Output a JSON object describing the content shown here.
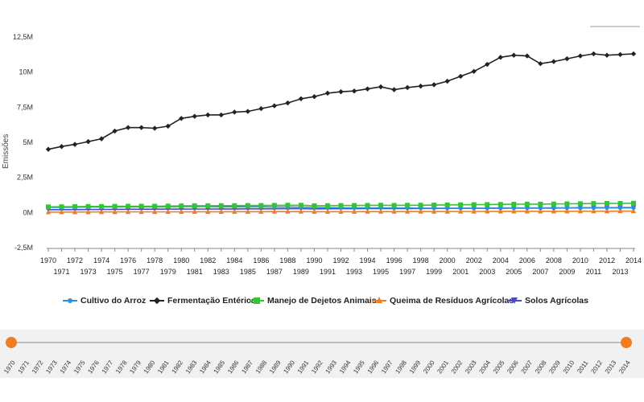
{
  "chart_data": {
    "type": "line",
    "title": "",
    "xlabel": "",
    "ylabel": "Emissões",
    "ylim": [
      -2500000,
      12500000
    ],
    "yticks": [
      {
        "value": 12500000,
        "label": "12,5M"
      },
      {
        "value": 10000000,
        "label": "10M"
      },
      {
        "value": 7500000,
        "label": "7,5M"
      },
      {
        "value": 5000000,
        "label": "5M"
      },
      {
        "value": 2500000,
        "label": "2,5M"
      },
      {
        "value": 0,
        "label": "0M"
      },
      {
        "value": -2500000,
        "label": "-2,5M"
      }
    ],
    "x": [
      1970,
      1971,
      1972,
      1973,
      1974,
      1975,
      1976,
      1977,
      1978,
      1979,
      1980,
      1981,
      1982,
      1983,
      1984,
      1985,
      1986,
      1987,
      1988,
      1989,
      1990,
      1991,
      1992,
      1993,
      1994,
      1995,
      1996,
      1997,
      1998,
      1999,
      2000,
      2001,
      2002,
      2003,
      2004,
      2005,
      2006,
      2007,
      2008,
      2009,
      2010,
      2011,
      2012,
      2013,
      2014
    ],
    "grid": false,
    "legend_position": "bottom",
    "series": [
      {
        "name": "Cultivo do Arroz",
        "color": "#2f8fdc",
        "marker": "circle",
        "values": [
          360000,
          370000,
          380000,
          390000,
          390000,
          400000,
          410000,
          410000,
          400000,
          410000,
          420000,
          420000,
          420000,
          410000,
          410000,
          400000,
          400000,
          390000,
          390000,
          380000,
          360000,
          350000,
          340000,
          330000,
          330000,
          330000,
          320000,
          320000,
          310000,
          310000,
          300000,
          300000,
          300000,
          300000,
          300000,
          310000,
          310000,
          310000,
          310000,
          320000,
          320000,
          330000,
          330000,
          330000,
          330000
        ]
      },
      {
        "name": "Fermentação Entérica",
        "color": "#222222",
        "marker": "diamond",
        "values": [
          4500000,
          4700000,
          4850000,
          5050000,
          5250000,
          5800000,
          6050000,
          6050000,
          6000000,
          6150000,
          6700000,
          6850000,
          6950000,
          6950000,
          7150000,
          7200000,
          7400000,
          7600000,
          7800000,
          8100000,
          8250000,
          8500000,
          8600000,
          8650000,
          8800000,
          8950000,
          8750000,
          8900000,
          9000000,
          9100000,
          9350000,
          9700000,
          10050000,
          10550000,
          11050000,
          11200000,
          11150000,
          10600000,
          10750000,
          10950000,
          11150000,
          11300000,
          11200000,
          11250000,
          11300000
        ]
      },
      {
        "name": "Manejo de Dejetos Animais",
        "color": "#35c435",
        "marker": "square",
        "values": [
          400000,
          410000,
          420000,
          430000,
          430000,
          440000,
          450000,
          450000,
          450000,
          460000,
          470000,
          480000,
          480000,
          490000,
          490000,
          500000,
          500000,
          510000,
          520000,
          520000,
          480000,
          490000,
          500000,
          500000,
          510000,
          520000,
          510000,
          520000,
          520000,
          530000,
          540000,
          550000,
          560000,
          570000,
          580000,
          590000,
          600000,
          600000,
          610000,
          620000,
          630000,
          640000,
          650000,
          650000,
          660000
        ]
      },
      {
        "name": "Queima de Resíduos Agrícolas",
        "color": "#f07d20",
        "marker": "triangle",
        "values": [
          30000,
          30000,
          35000,
          35000,
          40000,
          40000,
          45000,
          45000,
          45000,
          50000,
          50000,
          55000,
          55000,
          55000,
          60000,
          60000,
          60000,
          65000,
          65000,
          65000,
          60000,
          60000,
          60000,
          60000,
          65000,
          65000,
          65000,
          70000,
          70000,
          70000,
          70000,
          75000,
          75000,
          80000,
          80000,
          85000,
          85000,
          85000,
          90000,
          90000,
          95000,
          95000,
          95000,
          100000,
          100000
        ]
      },
      {
        "name": "Solos Agrícolas",
        "color": "#4a4ac8",
        "marker": "triangle-down",
        "values": [
          200000,
          205000,
          210000,
          215000,
          220000,
          225000,
          230000,
          235000,
          235000,
          240000,
          245000,
          250000,
          250000,
          255000,
          255000,
          260000,
          260000,
          265000,
          270000,
          270000,
          260000,
          265000,
          270000,
          270000,
          275000,
          280000,
          280000,
          285000,
          290000,
          290000,
          295000,
          300000,
          305000,
          310000,
          315000,
          320000,
          325000,
          325000,
          330000,
          335000,
          340000,
          345000,
          345000,
          350000,
          350000
        ]
      }
    ]
  },
  "legend": {
    "items": [
      {
        "label": "Cultivo do Arroz",
        "icon": "circle-marker-icon",
        "color": "#2f8fdc"
      },
      {
        "label": "Fermentação Entérica",
        "icon": "diamond-marker-icon",
        "color": "#222222"
      },
      {
        "label": "Manejo de Dejetos Animais",
        "icon": "square-marker-icon",
        "color": "#35c435"
      },
      {
        "label": "Queima de Resíduos Agrícolas",
        "icon": "triangle-marker-icon",
        "color": "#f07d20"
      },
      {
        "label": "Solos Agrícolas",
        "icon": "triangle-down-marker-icon",
        "color": "#4a4ac8"
      }
    ]
  },
  "navigator": {
    "start_year": 1970,
    "end_year": 2014,
    "handle_color": "#f07d20",
    "years": [
      "1970",
      "1971",
      "1972",
      "1973",
      "1974",
      "1975",
      "1976",
      "1977",
      "1978",
      "1979",
      "1980",
      "1981",
      "1982",
      "1983",
      "1984",
      "1985",
      "1986",
      "1987",
      "1988",
      "1989",
      "1990",
      "1991",
      "1992",
      "1993",
      "1994",
      "1995",
      "1996",
      "1997",
      "1998",
      "1999",
      "2000",
      "2001",
      "2002",
      "2003",
      "2004",
      "2005",
      "2006",
      "2007",
      "2008",
      "2009",
      "2010",
      "2011",
      "2012",
      "2013",
      "2014"
    ]
  }
}
